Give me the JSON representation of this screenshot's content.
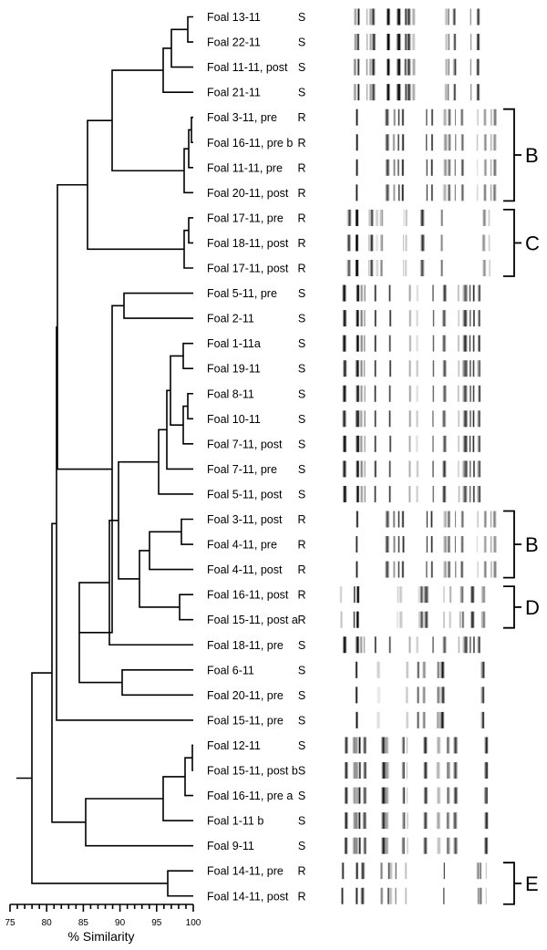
{
  "figure": {
    "axis": {
      "title": "% Similarity",
      "ticks": [
        75,
        80,
        85,
        90,
        95,
        100
      ],
      "min": 75,
      "max": 100
    },
    "leaves": [
      {
        "label": "Foal 13-11",
        "resistance": "S"
      },
      {
        "label": "Foal 22-11",
        "resistance": "S"
      },
      {
        "label": "Foal 11-11, post",
        "resistance": "S"
      },
      {
        "label": "Foal 21-11",
        "resistance": "S"
      },
      {
        "label": "Foal 3-11, pre",
        "resistance": "R"
      },
      {
        "label": "Foal 16-11, pre b",
        "resistance": "R"
      },
      {
        "label": "Foal 11-11, pre",
        "resistance": "R"
      },
      {
        "label": "Foal 20-11, post",
        "resistance": "R"
      },
      {
        "label": "Foal 17-11, pre",
        "resistance": "R"
      },
      {
        "label": "Foal 18-11, post",
        "resistance": "R"
      },
      {
        "label": "Foal 17-11, post",
        "resistance": "R"
      },
      {
        "label": "Foal 5-11, pre",
        "resistance": "S"
      },
      {
        "label": "Foal 2-11",
        "resistance": "S"
      },
      {
        "label": "Foal 1-11a",
        "resistance": "S"
      },
      {
        "label": "Foal 19-11",
        "resistance": "S"
      },
      {
        "label": "Foal 8-11",
        "resistance": "S"
      },
      {
        "label": "Foal 10-11",
        "resistance": "S"
      },
      {
        "label": "Foal 7-11, post",
        "resistance": "S"
      },
      {
        "label": "Foal 7-11, pre",
        "resistance": "S"
      },
      {
        "label": "Foal 5-11, post",
        "resistance": "S"
      },
      {
        "label": "Foal 3-11, post",
        "resistance": "R"
      },
      {
        "label": "Foal 4-11, pre",
        "resistance": "R"
      },
      {
        "label": "Foal 4-11, post",
        "resistance": "R"
      },
      {
        "label": "Foal 16-11, post",
        "resistance": "R"
      },
      {
        "label": "Foal 15-11, post a",
        "resistance": "R"
      },
      {
        "label": "Foal 18-11, pre",
        "resistance": "S"
      },
      {
        "label": "Foal 6-11",
        "resistance": "S"
      },
      {
        "label": "Foal 20-11, pre",
        "resistance": "S"
      },
      {
        "label": "Foal 15-11, pre",
        "resistance": "S"
      },
      {
        "label": "Foal 12-11",
        "resistance": "S"
      },
      {
        "label": "Foal 15-11, post b",
        "resistance": "S"
      },
      {
        "label": "Foal 16-11, pre a",
        "resistance": "S"
      },
      {
        "label": "Foal 1-11 b",
        "resistance": "S"
      },
      {
        "label": "Foal 9-11",
        "resistance": "S"
      },
      {
        "label": "Foal 14-11, pre",
        "resistance": "R"
      },
      {
        "label": "Foal 14-11, post",
        "resistance": "R"
      }
    ],
    "clusters": [
      {
        "label": "B",
        "first": 4,
        "last": 7
      },
      {
        "label": "C",
        "first": 8,
        "last": 10
      },
      {
        "label": "B",
        "first": 20,
        "last": 22
      },
      {
        "label": "D",
        "first": 23,
        "last": 24
      },
      {
        "label": "E",
        "first": 34,
        "last": 35
      }
    ]
  }
}
